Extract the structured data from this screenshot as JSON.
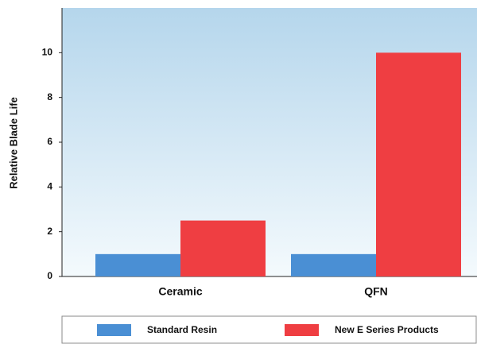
{
  "chart_data": {
    "type": "bar",
    "y_label": "Relative Blade Life",
    "categories": [
      "Ceramic",
      "QFN"
    ],
    "series": [
      {
        "name": "Standard Resin",
        "color": "#4a8fd4",
        "values": [
          1,
          1
        ]
      },
      {
        "name": "New E Series Products",
        "color": "#ef3e42",
        "values": [
          2.5,
          10
        ]
      }
    ],
    "ylim": [
      0,
      12
    ],
    "yticks": [
      0,
      2,
      4,
      6,
      8,
      10
    ],
    "grid": false,
    "legend": "bottom"
  }
}
